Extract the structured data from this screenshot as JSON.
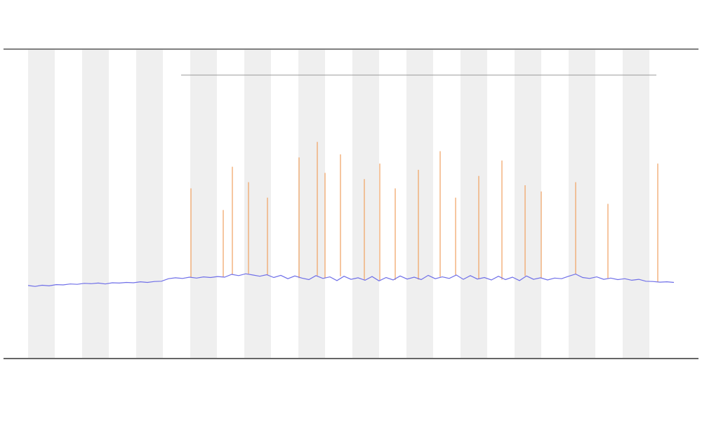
{
  "chart_data": {
    "type": "line",
    "xlim": [
      0,
      92
    ],
    "ylim": [
      0,
      100
    ],
    "series": [
      {
        "color": "#6f6fe8",
        "x": [
          0,
          1,
          2,
          3,
          4,
          5,
          6,
          7,
          8,
          9,
          10,
          11,
          12,
          13,
          14,
          15,
          16,
          17,
          18,
          19,
          20,
          21,
          22,
          23,
          24,
          25,
          26,
          27,
          28,
          29,
          30,
          31,
          32,
          33,
          34,
          35,
          36,
          37,
          38,
          39,
          40,
          41,
          42,
          43,
          44,
          45,
          46,
          47,
          48,
          49,
          50,
          51,
          52,
          53,
          54,
          55,
          56,
          57,
          58,
          59,
          60,
          61,
          62,
          63,
          64,
          65,
          66,
          67,
          68,
          69,
          70,
          71,
          72,
          73,
          74,
          75,
          76,
          77,
          78,
          79,
          80,
          81,
          82,
          83,
          84,
          85,
          86,
          87,
          88,
          89,
          90,
          91,
          92
        ],
        "values": [
          23.6,
          23.3,
          23.7,
          23.5,
          23.9,
          23.8,
          24.1,
          24.0,
          24.3,
          24.2,
          24.4,
          24.1,
          24.5,
          24.4,
          24.6,
          24.5,
          24.8,
          24.6,
          24.9,
          25.0,
          25.8,
          26.1,
          25.9,
          26.3,
          26.0,
          26.4,
          26.2,
          26.5,
          26.3,
          27.2,
          26.8,
          27.4,
          27.0,
          26.6,
          27.1,
          26.2,
          26.9,
          25.8,
          26.7,
          26.0,
          25.5,
          26.8,
          25.9,
          26.4,
          25.2,
          26.6,
          25.6,
          26.1,
          25.3,
          26.5,
          25.1,
          26.2,
          25.4,
          26.7,
          25.7,
          26.3,
          25.5,
          26.9,
          25.8,
          26.4,
          25.9,
          27.0,
          25.6,
          26.8,
          25.7,
          26.2,
          25.4,
          26.6,
          25.5,
          26.3,
          25.2,
          26.7,
          25.6,
          26.1,
          25.4,
          26.0,
          25.8,
          26.6,
          27.3,
          26.2,
          25.9,
          26.4,
          25.6,
          26.0,
          25.5,
          25.8,
          25.3,
          25.6,
          25.0,
          24.9,
          24.7,
          24.8,
          24.6
        ]
      },
      {
        "color": "#f0a060",
        "x": [
          23.2,
          27.8,
          29.1,
          31.4,
          34.1,
          38.6,
          41.2,
          42.3,
          44.5,
          47.9,
          50.1,
          52.3,
          55.6,
          58.7,
          60.9,
          64.2,
          67.5,
          70.8,
          73.1,
          78.0,
          82.6,
          89.7
        ],
        "values": [
          55,
          48,
          62,
          57,
          52,
          65,
          70,
          60,
          66,
          58,
          63,
          55,
          61,
          67,
          52,
          59,
          64,
          56,
          54,
          57,
          50,
          63
        ]
      }
    ]
  }
}
